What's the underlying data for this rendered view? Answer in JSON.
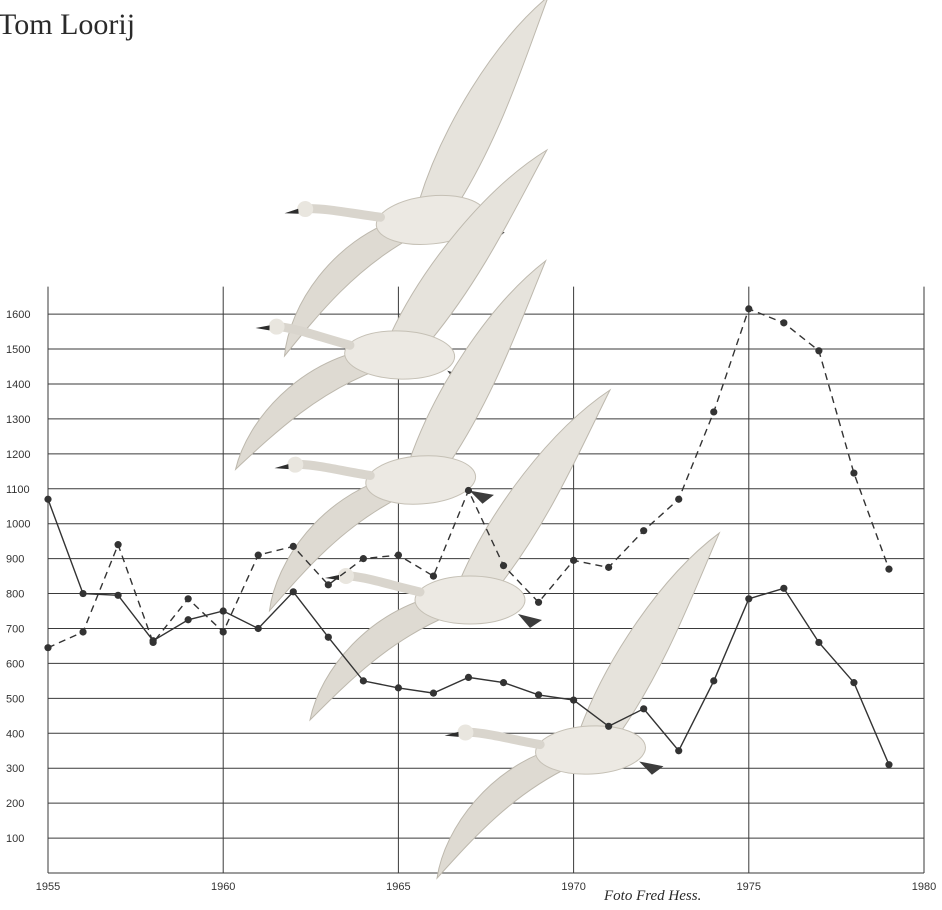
{
  "header": {
    "author": "Tom Loorij"
  },
  "caption": {
    "credit": "Foto Fred Hess."
  },
  "illustration": "flying-swans-photo",
  "colors": {
    "ink": "#333333",
    "background": "#ffffff",
    "swan": "#d9d6cf"
  },
  "chart_data": {
    "type": "line",
    "title": "",
    "xlabel": "",
    "ylabel": "",
    "xlim": [
      1955,
      1980
    ],
    "ylim": [
      0,
      1650
    ],
    "x_ticks": [
      1955,
      1960,
      1965,
      1970,
      1975,
      1980
    ],
    "x_tick_labels": [
      "1955",
      "1960",
      "1965",
      "1970",
      "1975",
      "1980"
    ],
    "y_ticks": [
      100,
      200,
      300,
      400,
      500,
      600,
      700,
      800,
      900,
      1000,
      1100,
      1200,
      1300,
      1400,
      1500,
      1600
    ],
    "y_tick_labels": [
      "100",
      "200",
      "300",
      "400",
      "500",
      "600",
      "700",
      "800",
      "900",
      "1000",
      "1100",
      "1200",
      "1300",
      "1400",
      "1500",
      "1600"
    ],
    "grid": true,
    "series": [
      {
        "style": "solid",
        "x": [
          1955,
          1956,
          1957,
          1958,
          1959,
          1960,
          1961,
          1962,
          1963,
          1964,
          1965,
          1966,
          1967,
          1968,
          1969,
          1970,
          1971,
          1972,
          1973,
          1974,
          1975,
          1976,
          1977,
          1978,
          1979
        ],
        "values": [
          1070,
          800,
          795,
          665,
          725,
          750,
          700,
          805,
          675,
          550,
          530,
          515,
          560,
          545,
          510,
          495,
          420,
          470,
          350,
          550,
          785,
          815,
          660,
          545,
          310
        ]
      },
      {
        "style": "dashed",
        "x": [
          1955,
          1956,
          1957,
          1958,
          1959,
          1960,
          1961,
          1962,
          1963,
          1964,
          1965,
          1966,
          1967,
          1968,
          1969,
          1970,
          1971,
          1972,
          1973,
          1974,
          1975,
          1976,
          1977,
          1978,
          1979
        ],
        "values": [
          645,
          690,
          940,
          660,
          785,
          690,
          910,
          935,
          825,
          900,
          910,
          850,
          1095,
          880,
          775,
          895,
          875,
          980,
          1070,
          1320,
          1615,
          1575,
          1495,
          1145,
          870
        ]
      }
    ]
  }
}
